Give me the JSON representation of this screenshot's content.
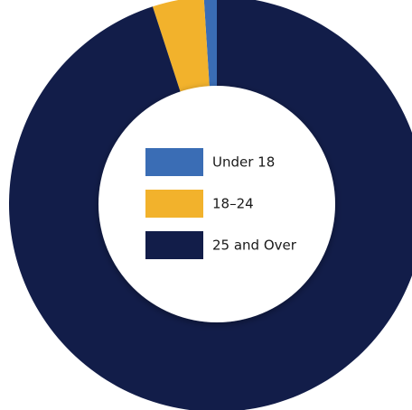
{
  "chart_data": {
    "type": "pie",
    "style": "donut",
    "start_angle_deg": 270,
    "direction": "counterclockwise",
    "legend_position": "center",
    "slices": [
      {
        "label": "Under 18",
        "value": 1,
        "color": "#3a6db5"
      },
      {
        "label": "18–24",
        "value": 4,
        "color": "#f2b22c"
      },
      {
        "label": "25 and Over",
        "value": 95,
        "color": "#121d49"
      }
    ]
  }
}
